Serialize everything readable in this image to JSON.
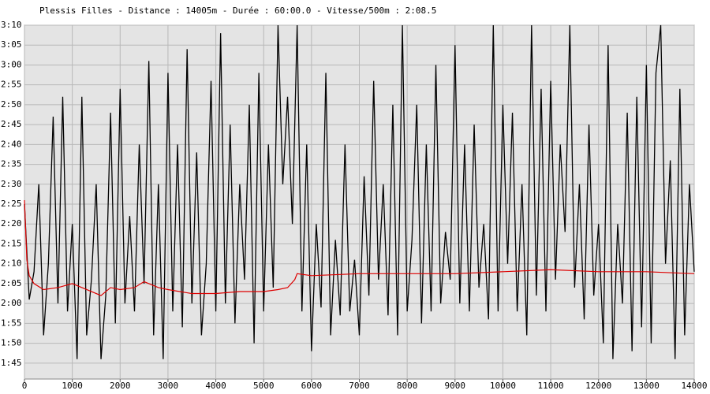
{
  "chart_data": {
    "type": "line",
    "title": "Plessis Filles - Distance : 14005m - Durée : 60:00.0 - Vitesse/500m : 2:08.5",
    "xlim": [
      0,
      14000
    ],
    "xticks": [
      0,
      1000,
      2000,
      3000,
      4000,
      5000,
      6000,
      7000,
      8000,
      9000,
      10000,
      11000,
      12000,
      13000,
      14000
    ],
    "ylim": [
      101,
      190
    ],
    "yticks": [
      {
        "value": 105,
        "label": "1:45"
      },
      {
        "value": 110,
        "label": "1:50"
      },
      {
        "value": 115,
        "label": "1:55"
      },
      {
        "value": 120,
        "label": "2:00"
      },
      {
        "value": 125,
        "label": "2:05"
      },
      {
        "value": 130,
        "label": "2:10"
      },
      {
        "value": 135,
        "label": "2:15"
      },
      {
        "value": 140,
        "label": "2:20"
      },
      {
        "value": 145,
        "label": "2:25"
      },
      {
        "value": 150,
        "label": "2:30"
      },
      {
        "value": 155,
        "label": "2:35"
      },
      {
        "value": 160,
        "label": "2:40"
      },
      {
        "value": 165,
        "label": "2:45"
      },
      {
        "value": 170,
        "label": "2:50"
      },
      {
        "value": 175,
        "label": "2:55"
      },
      {
        "value": 180,
        "label": "3:00"
      },
      {
        "value": 185,
        "label": "3:05"
      },
      {
        "value": 190,
        "label": "3:10"
      }
    ],
    "grid": true,
    "series": [
      {
        "color": "#000000",
        "x": [
          0,
          100,
          200,
          300,
          400,
          500,
          600,
          700,
          800,
          900,
          1000,
          1100,
          1200,
          1300,
          1400,
          1500,
          1600,
          1700,
          1800,
          1900,
          2000,
          2100,
          2200,
          2300,
          2400,
          2500,
          2600,
          2700,
          2800,
          2900,
          3000,
          3100,
          3200,
          3300,
          3400,
          3500,
          3600,
          3700,
          3800,
          3900,
          4000,
          4100,
          4200,
          4300,
          4400,
          4500,
          4600,
          4700,
          4800,
          4900,
          5000,
          5100,
          5200,
          5300,
          5400,
          5500,
          5600,
          5700,
          5800,
          5900,
          6000,
          6100,
          6200,
          6300,
          6400,
          6500,
          6600,
          6700,
          6800,
          6900,
          7000,
          7100,
          7200,
          7300,
          7400,
          7500,
          7600,
          7700,
          7800,
          7900,
          8000,
          8100,
          8200,
          8300,
          8400,
          8500,
          8600,
          8700,
          8800,
          8900,
          9000,
          9100,
          9200,
          9300,
          9400,
          9500,
          9600,
          9700,
          9800,
          9900,
          10000,
          10100,
          10200,
          10300,
          10400,
          10500,
          10600,
          10700,
          10800,
          10900,
          11000,
          11100,
          11200,
          11300,
          11400,
          11500,
          11600,
          11700,
          11800,
          11900,
          12000,
          12100,
          12200,
          12300,
          12400,
          12500,
          12600,
          12700,
          12800,
          12900,
          13000,
          13100,
          13200,
          13300,
          13400,
          13500,
          13600,
          13700,
          13800,
          13900,
          14000
        ],
        "values": [
          145,
          121,
          128,
          150,
          112,
          130,
          167,
          120,
          172,
          118,
          140,
          106,
          172,
          112,
          126,
          150,
          106,
          122,
          168,
          115,
          174,
          120,
          142,
          118,
          160,
          125,
          181,
          112,
          150,
          106,
          178,
          118,
          160,
          114,
          184,
          120,
          158,
          112,
          130,
          176,
          118,
          188,
          120,
          165,
          115,
          150,
          126,
          170,
          110,
          178,
          118,
          160,
          124,
          190,
          150,
          172,
          140,
          190,
          118,
          160,
          108,
          140,
          119,
          178,
          112,
          136,
          117,
          160,
          118,
          131,
          112,
          152,
          122,
          176,
          126,
          150,
          117,
          170,
          112,
          190,
          118,
          136,
          170,
          115,
          160,
          118,
          180,
          120,
          138,
          126,
          185,
          120,
          160,
          118,
          165,
          124,
          140,
          116,
          190,
          118,
          170,
          130,
          168,
          118,
          150,
          112,
          190,
          122,
          174,
          118,
          176,
          126,
          160,
          138,
          190,
          124,
          150,
          116,
          165,
          122,
          140,
          110,
          185,
          106,
          140,
          120,
          168,
          108,
          172,
          114,
          180,
          110,
          178,
          190,
          130,
          156,
          106,
          174,
          112,
          150,
          128
        ]
      },
      {
        "color": "#dd0000",
        "x": [
          0,
          50,
          100,
          200,
          400,
          700,
          1000,
          1300,
          1600,
          1800,
          2000,
          2300,
          2500,
          2800,
          3000,
          3500,
          4000,
          4500,
          5000,
          5300,
          5500,
          5650,
          5700,
          6000,
          7000,
          8000,
          9000,
          10000,
          11000,
          12000,
          13000,
          14000
        ],
        "values": [
          146,
          131,
          127,
          125,
          123.5,
          124,
          125,
          123.5,
          122,
          124,
          123.5,
          124,
          125.5,
          124,
          123.5,
          122.5,
          122.5,
          123,
          123,
          123.5,
          124,
          126,
          127.5,
          127,
          127.5,
          127.5,
          127.5,
          128,
          128.5,
          128,
          128,
          127.5
        ]
      }
    ]
  }
}
